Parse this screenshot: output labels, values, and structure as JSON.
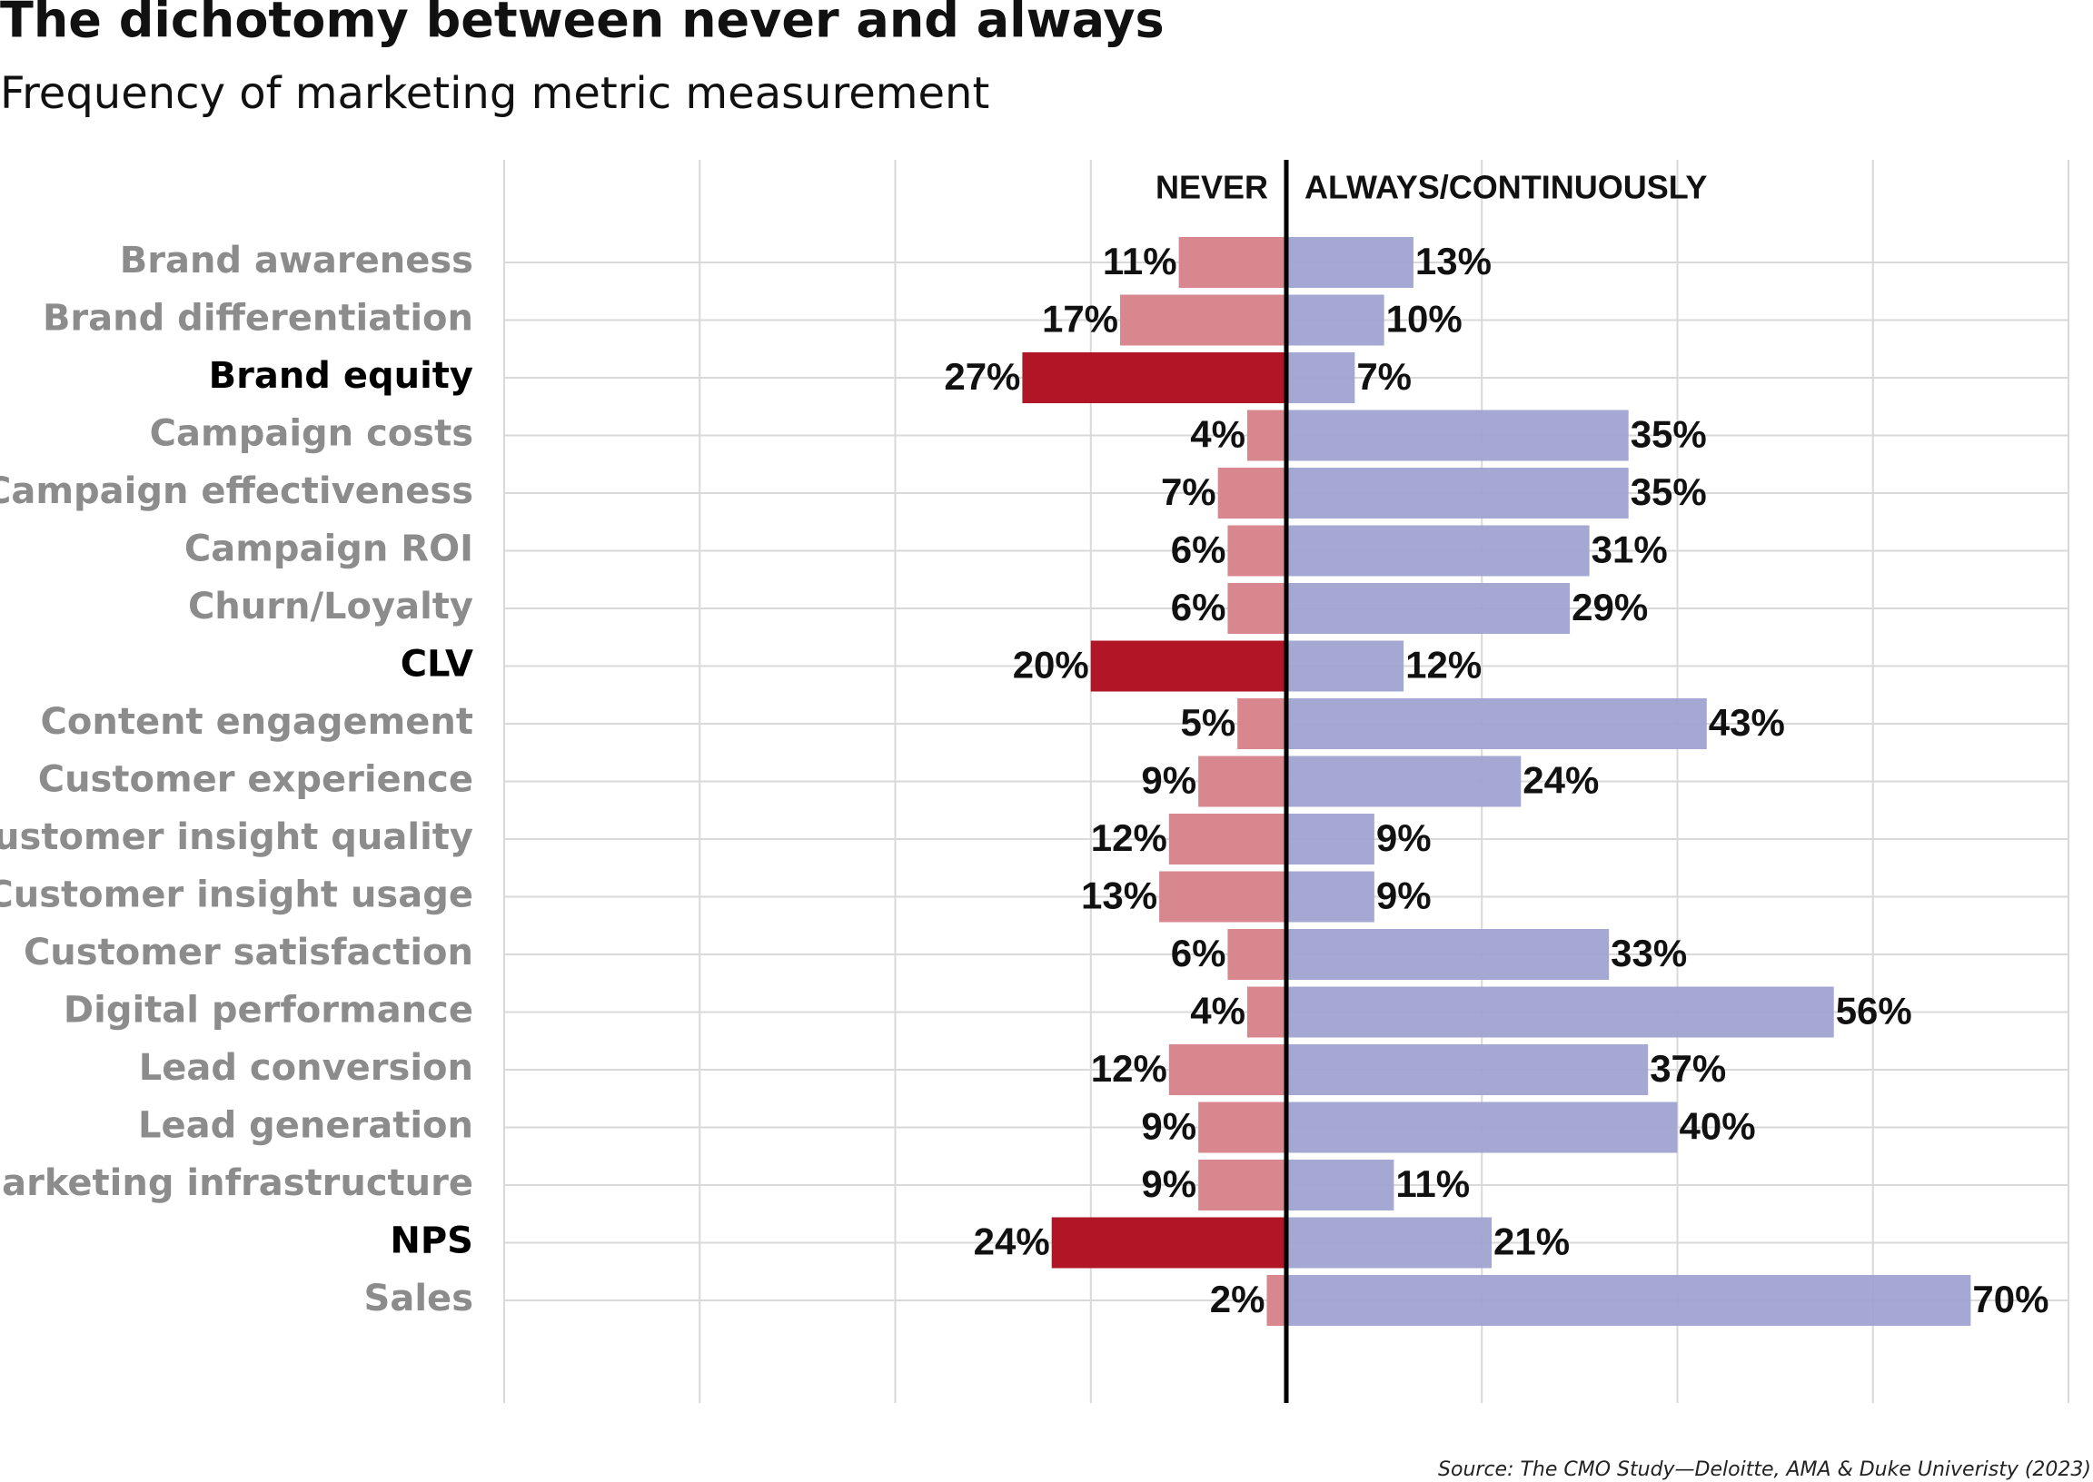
{
  "chart_data": {
    "type": "diverging-bar",
    "title": "The dichotomy between never and always",
    "subtitle": "Frequency of marketing metric measurement",
    "source": "Source: The CMO Study—Deloitte, AMA & Duke Univeristy (2023)",
    "categories": [
      "Brand awareness",
      "Brand differentiation",
      "Brand equity",
      "Campaign costs",
      "Campaign effectiveness",
      "Campaign ROI",
      "Churn/Loyalty",
      "CLV",
      "Content engagement",
      "Customer experience",
      "Customer insight quality",
      "Customer insight usage",
      "Customer satisfaction",
      "Digital performance",
      "Lead conversion",
      "Lead generation",
      "Marketing infrastructure",
      "NPS",
      "Sales"
    ],
    "series": [
      {
        "name": "NEVER",
        "color": "#d8878e",
        "colors": [
          "#d8878e",
          "#d8878e",
          "#b01626",
          "#d8878e",
          "#d8878e",
          "#d8878e",
          "#d8878e",
          "#b01626",
          "#d8878e",
          "#d8878e",
          "#d8878e",
          "#d8878e",
          "#d8878e",
          "#d8878e",
          "#d8878e",
          "#d8878e",
          "#d8878e",
          "#b01626",
          "#d8878e"
        ],
        "values": [
          -11,
          -17,
          -27,
          -4,
          -7,
          -6,
          -6,
          -20,
          -5,
          -9,
          -12,
          -13,
          -6,
          -4,
          -12,
          -9,
          -9,
          -24,
          -2
        ],
        "value_labels": [
          "11%",
          "17%",
          "27%",
          "4%",
          "7%",
          "6%",
          "6%",
          "20%",
          "5%",
          "9%",
          "12%",
          "13%",
          "6%",
          "4%",
          "12%",
          "9%",
          "9%",
          "24%",
          "2%"
        ]
      },
      {
        "name": "ALWAYS/CONTINUOUSLY",
        "color": "#a0a3d0",
        "values": [
          13,
          10,
          7,
          35,
          35,
          31,
          29,
          12,
          43,
          24,
          9,
          9,
          33,
          56,
          37,
          40,
          11,
          21,
          70
        ],
        "value_labels": [
          "13%",
          "10%",
          "7%",
          "35%",
          "35%",
          "31%",
          "29%",
          "12%",
          "43%",
          "24%",
          "9%",
          "9%",
          "33%",
          "56%",
          "37%",
          "40%",
          "11%",
          "21%",
          "70%"
        ]
      }
    ],
    "xlim": [
      -80,
      80
    ],
    "xticks": [
      -80,
      -60,
      -40,
      -20,
      0,
      20,
      40,
      60,
      80
    ],
    "grid": true
  }
}
